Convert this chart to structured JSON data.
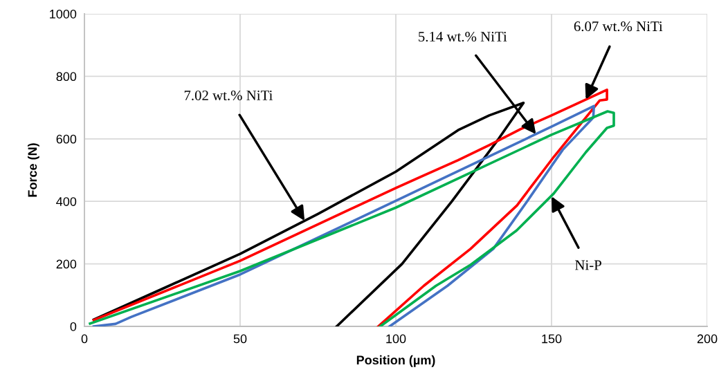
{
  "chart_data": {
    "type": "line",
    "xlabel": "Position (µm)",
    "ylabel": "Force (N)",
    "xlim": [
      0,
      200
    ],
    "ylim": [
      0,
      1000
    ],
    "xticks": [
      0,
      50,
      100,
      150,
      200
    ],
    "yticks": [
      0,
      200,
      400,
      600,
      800,
      1000
    ],
    "grid": true,
    "marker": "none",
    "line_style": "solid",
    "series": [
      {
        "color": "#000000",
        "x": [
          3,
          25,
          50,
          75,
          80,
          100,
          120,
          130,
          141,
          133,
          118,
          102,
          81
        ],
        "values": [
          22,
          120,
          232,
          360,
          387,
          495,
          628,
          675,
          715,
          600,
          400,
          200,
          0
        ]
      },
      {
        "color": "#ff0000",
        "x": [
          3,
          50,
          100,
          120,
          130,
          140,
          150,
          167.8,
          167.8,
          165.5,
          150.7,
          138.9,
          124,
          109,
          94.4
        ],
        "values": [
          20,
          210,
          443,
          532,
          580,
          631,
          675,
          757,
          726,
          723,
          542,
          387,
          248,
          130,
          0
        ]
      },
      {
        "color": "#4472c4",
        "x": [
          3,
          10,
          15,
          50,
          100,
          150,
          163.6,
          163.4,
          153.6,
          141.8,
          131.3,
          116.6,
          98
        ],
        "values": [
          0,
          8,
          30,
          166,
          402,
          639,
          705,
          668,
          565,
          395,
          248,
          130,
          0
        ]
      },
      {
        "color": "#00b050",
        "x": [
          1.8,
          50,
          100,
          150,
          168,
          170,
          170,
          167.8,
          161,
          150.7,
          138.8,
          124,
          112.9,
          95
        ],
        "values": [
          9,
          177,
          380,
          613,
          688,
          683,
          642,
          635,
          557,
          425,
          307,
          197,
          130,
          0
        ]
      }
    ],
    "annotations": [
      {
        "text": "7.02 wt.% NiTi",
        "x": 70.7,
        "y": 338
      },
      {
        "text": "5.14 wt.% NiTi",
        "x": 145,
        "y": 615
      },
      {
        "text": "6.07 wt.% NiTi",
        "x": 161,
        "y": 726
      },
      {
        "text": "Ni-P",
        "x": 150,
        "y": 416
      }
    ]
  }
}
